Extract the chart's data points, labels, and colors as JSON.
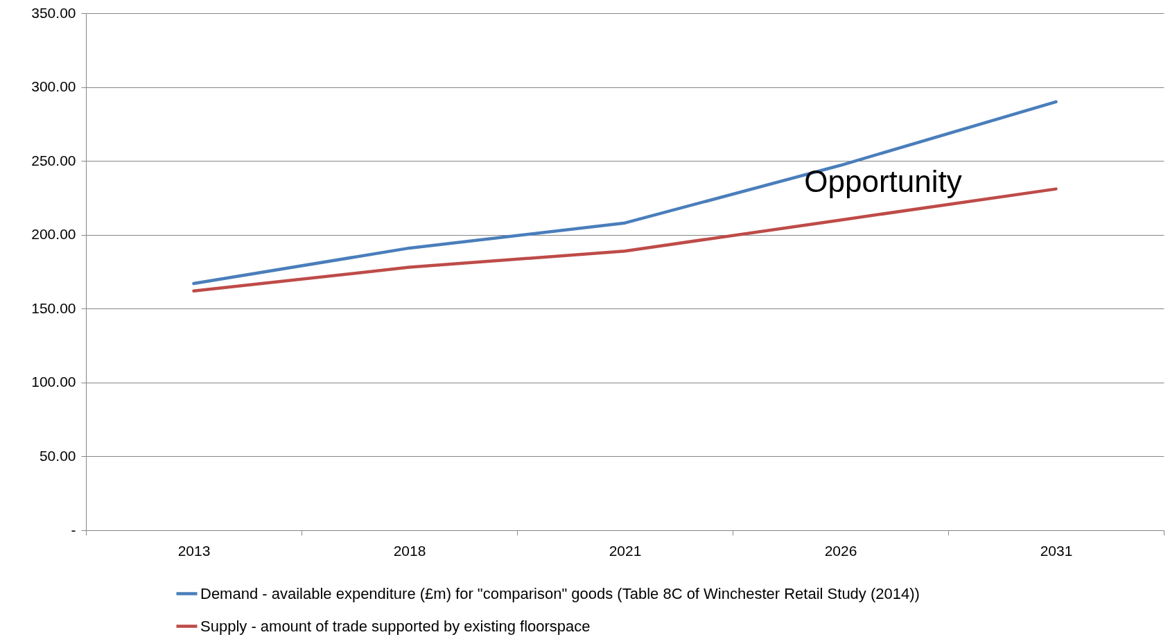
{
  "chart_data": {
    "type": "line",
    "categories": [
      "2013",
      "2018",
      "2021",
      "2026",
      "2031"
    ],
    "series": [
      {
        "name": "Demand - available expenditure (£m) for \"comparison\" goods (Table 8C of Winchester Retail Study (2014))",
        "color": "#4a7ebb",
        "values": [
          167,
          191,
          208,
          247,
          290
        ]
      },
      {
        "name": "Supply - amount of trade supported by existing floorspace",
        "color": "#be4b48",
        "values": [
          162,
          178,
          189,
          210,
          231
        ]
      }
    ],
    "ylim": [
      0,
      350
    ],
    "yticks": [
      {
        "value": 0,
        "label": "-"
      },
      {
        "value": 50,
        "label": "50.00"
      },
      {
        "value": 100,
        "label": "100.00"
      },
      {
        "value": 150,
        "label": "150.00"
      },
      {
        "value": 200,
        "label": "200.00"
      },
      {
        "value": 250,
        "label": "250.00"
      },
      {
        "value": 300,
        "label": "300.00"
      },
      {
        "value": 350,
        "label": "350.00"
      }
    ],
    "grid": "y",
    "legend": "bottom",
    "marker": "none",
    "line_style": "solid",
    "annotations": [
      "Opportunity"
    ]
  }
}
